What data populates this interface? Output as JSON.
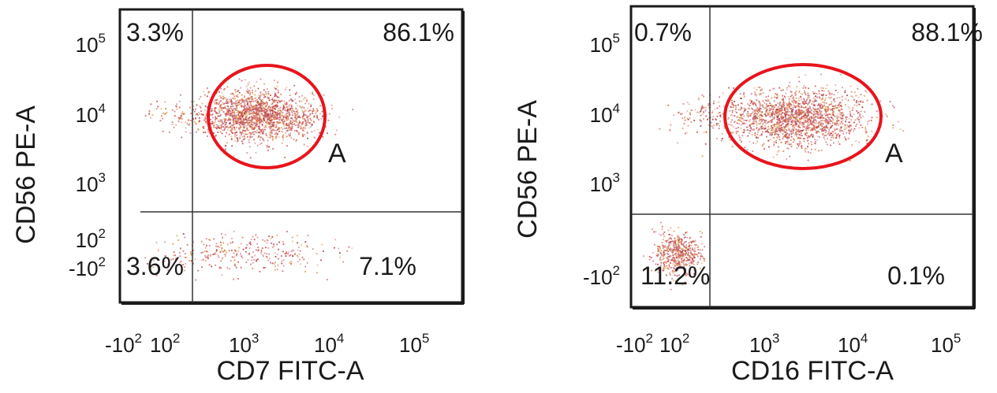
{
  "chart_data": [
    {
      "type": "scatter",
      "xlabel": "CD7 FITC-A",
      "ylabel": "CD56 PE-A",
      "x_ticks": [
        {
          "base": "-10",
          "exp": "2"
        },
        {
          "base": "10",
          "exp": "2"
        },
        {
          "base": "10",
          "exp": "3"
        },
        {
          "base": "10",
          "exp": "4"
        },
        {
          "base": "10",
          "exp": "5"
        }
      ],
      "y_ticks": [
        {
          "base": "10",
          "exp": "5"
        },
        {
          "base": "10",
          "exp": "4"
        },
        {
          "base": "10",
          "exp": "3"
        },
        {
          "base": "10",
          "exp": "2"
        },
        {
          "base": "-10",
          "exp": "2"
        }
      ],
      "scale": "biexponential",
      "quadrants": {
        "upper_left": "3.3%",
        "upper_right": "86.1%",
        "lower_left": "3.6%",
        "lower_right": "7.1%"
      },
      "gate": {
        "label": "A",
        "color": "#e8141c"
      },
      "dot_color": "#c8483c"
    },
    {
      "type": "scatter",
      "xlabel": "CD16 FITC-A",
      "ylabel": "CD56 PE-A",
      "x_ticks": [
        {
          "base": "-10",
          "exp": "2"
        },
        {
          "base": "10",
          "exp": "2"
        },
        {
          "base": "10",
          "exp": "3"
        },
        {
          "base": "10",
          "exp": "4"
        },
        {
          "base": "10",
          "exp": "5"
        }
      ],
      "y_ticks": [
        {
          "base": "10",
          "exp": "5"
        },
        {
          "base": "10",
          "exp": "4"
        },
        {
          "base": "10",
          "exp": "3"
        },
        {
          "base": "-10",
          "exp": "2"
        }
      ],
      "scale": "biexponential",
      "quadrants": {
        "upper_left": "0.7%",
        "upper_right": "88.1%",
        "lower_left": "11.2%",
        "lower_right": "0.1%"
      },
      "gate": {
        "label": "A",
        "color": "#e8141c"
      },
      "dot_color": "#c8483c"
    }
  ]
}
